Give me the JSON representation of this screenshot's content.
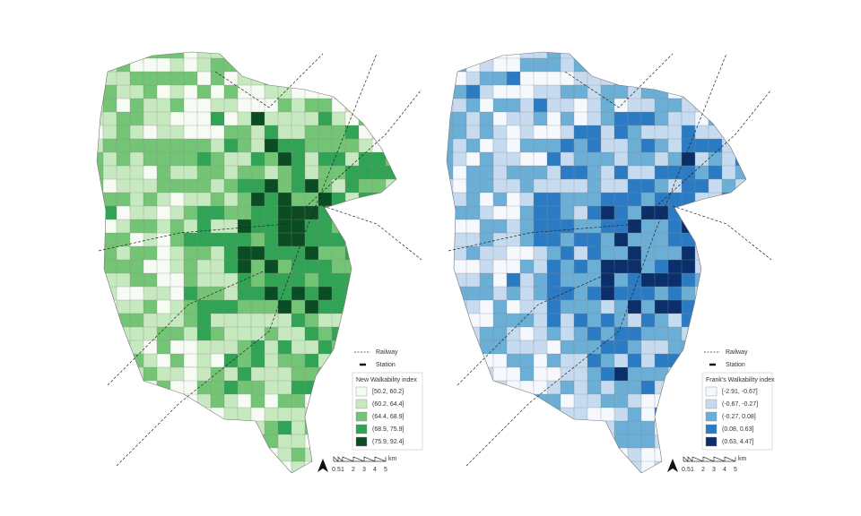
{
  "maps": [
    {
      "legend": {
        "railway": "Railway",
        "station": "Station",
        "title": "New Walkability index",
        "classes": [
          {
            "label": "[50.2, 60.2]",
            "color": "#f6fbf4"
          },
          {
            "label": "(60.2, 64.4]",
            "color": "#c7e9c0"
          },
          {
            "label": "(64.4, 68.9]",
            "color": "#74c476"
          },
          {
            "label": "(68.9, 75.9]",
            "color": "#31a354"
          },
          {
            "label": "(75.9, 92.4]",
            "color": "#0b4d22"
          }
        ]
      },
      "scale": {
        "ticks": [
          "0",
          ".5",
          "1",
          "2",
          "3",
          "4",
          "5"
        ],
        "unit": "km"
      }
    },
    {
      "legend": {
        "railway": "Railway",
        "station": "Station",
        "title": "Frank's Walkability index",
        "classes": [
          {
            "label": "[-2.91, -0.67]",
            "color": "#f5f9fd"
          },
          {
            "label": "(-0.67, -0.27]",
            "color": "#c6dbef"
          },
          {
            "label": "(-0.27, 0.08]",
            "color": "#6baed6"
          },
          {
            "label": "(0.08, 0.63]",
            "color": "#2b7bc4"
          },
          {
            "label": "(0.63, 4.47]",
            "color": "#0a2f6b"
          }
        ]
      },
      "scale": {
        "ticks": [
          "0",
          ".5",
          "1",
          "2",
          "3",
          "4",
          "5"
        ],
        "unit": "km"
      }
    }
  ]
}
